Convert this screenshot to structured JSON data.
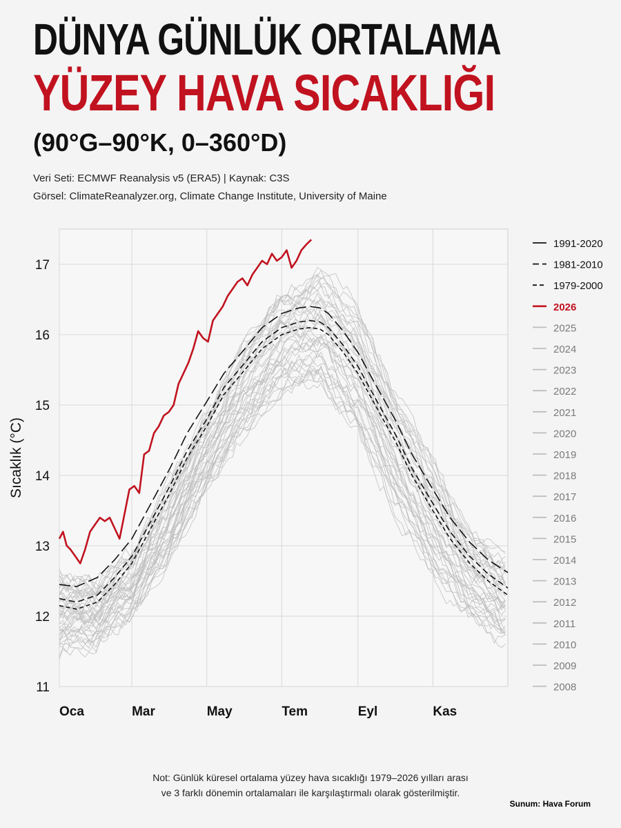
{
  "header": {
    "title_line1": "DÜNYA GÜNLÜK ORTALAMA",
    "title_line2": "YÜZEY HAVA SICAKLIĞI",
    "title_line3": "(90°G–90°K, 0–360°D)",
    "dataset": "Veri Seti: ECMWF Reanalysis v5 (ERA5) | Kaynak: C3S",
    "visual": "Görsel: ClimateReanalyzer.org, Climate Change Institute, University of Maine"
  },
  "footer": {
    "note_line1": "Not: Günlük küresel ortalama yüzey hava sıcaklığı 1979–2026 yılları arası",
    "note_line2": "ve 3 farklı dönemin ortalamaları ile karşılaştırmalı olarak gösterilmiştir.",
    "credit": "Sunum: Hava Forum"
  },
  "colors": {
    "accent_red": "#c1121f",
    "climatology": "#111111",
    "history": "#bdbdbd",
    "grid": "#d8d8d8"
  },
  "chart_data": {
    "type": "line",
    "ylabel": "Sıcaklık (°C)",
    "xlabel": "",
    "ylim": [
      11,
      17.5
    ],
    "xlim": [
      1,
      366
    ],
    "yticks": [
      11,
      12,
      13,
      14,
      15,
      16,
      17
    ],
    "xticks": [
      {
        "day": 1,
        "label": "Oca"
      },
      {
        "day": 60,
        "label": "Mar"
      },
      {
        "day": 121,
        "label": "May"
      },
      {
        "day": 182,
        "label": "Tem"
      },
      {
        "day": 244,
        "label": "Eyl"
      },
      {
        "day": 305,
        "label": "Kas"
      }
    ],
    "grid": true,
    "legend_position": "right",
    "series": [
      {
        "name": "1991-2020",
        "style": "solid",
        "color": "#111111",
        "x": [
          1,
          15,
          32,
          46,
          60,
          74,
          91,
          105,
          121,
          135,
          152,
          166,
          182,
          196,
          205,
          213,
          220,
          232,
          244,
          258,
          274,
          288,
          305,
          319,
          335,
          350,
          366
        ],
        "y": [
          12.45,
          12.42,
          12.55,
          12.8,
          13.1,
          13.55,
          14.1,
          14.6,
          15.05,
          15.45,
          15.8,
          16.1,
          16.3,
          16.38,
          16.4,
          16.38,
          16.3,
          16.05,
          15.75,
          15.3,
          14.8,
          14.3,
          13.8,
          13.4,
          13.05,
          12.8,
          12.62
        ]
      },
      {
        "name": "1981-2010",
        "style": "dashed",
        "color": "#111111",
        "x": [
          1,
          15,
          32,
          46,
          60,
          74,
          91,
          105,
          121,
          135,
          152,
          166,
          182,
          196,
          205,
          213,
          220,
          232,
          244,
          258,
          274,
          288,
          305,
          319,
          335,
          350,
          366
        ],
        "y": [
          12.25,
          12.2,
          12.3,
          12.55,
          12.85,
          13.3,
          13.85,
          14.35,
          14.8,
          15.25,
          15.6,
          15.9,
          16.1,
          16.18,
          16.2,
          16.18,
          16.1,
          15.85,
          15.55,
          15.1,
          14.6,
          14.1,
          13.6,
          13.2,
          12.85,
          12.6,
          12.4
        ]
      },
      {
        "name": "1979-2000",
        "style": "dashed",
        "color": "#111111",
        "x": [
          1,
          15,
          32,
          46,
          60,
          74,
          91,
          105,
          121,
          135,
          152,
          166,
          182,
          196,
          205,
          213,
          220,
          232,
          244,
          258,
          274,
          288,
          305,
          319,
          335,
          350,
          366
        ],
        "y": [
          12.15,
          12.1,
          12.2,
          12.45,
          12.75,
          13.2,
          13.75,
          14.25,
          14.7,
          15.15,
          15.5,
          15.8,
          16.0,
          16.08,
          16.1,
          16.08,
          16.0,
          15.75,
          15.45,
          15.0,
          14.5,
          14.0,
          13.5,
          13.1,
          12.75,
          12.5,
          12.3
        ]
      },
      {
        "name": "2026",
        "style": "solid",
        "color": "#c1121f",
        "x": [
          1,
          4,
          7,
          10,
          14,
          18,
          22,
          26,
          30,
          34,
          38,
          42,
          46,
          50,
          54,
          58,
          62,
          66,
          70,
          74,
          78,
          82,
          86,
          90,
          94,
          98,
          102,
          106,
          110,
          114,
          118,
          122,
          126,
          130,
          134,
          138,
          142,
          146,
          150,
          154,
          158,
          162,
          166,
          170,
          174,
          178,
          182,
          186,
          190,
          194,
          198,
          202,
          206
        ],
        "y": [
          13.1,
          13.2,
          13.0,
          12.95,
          12.85,
          12.75,
          12.95,
          13.2,
          13.3,
          13.4,
          13.35,
          13.4,
          13.25,
          13.1,
          13.45,
          13.8,
          13.85,
          13.75,
          14.3,
          14.35,
          14.6,
          14.7,
          14.85,
          14.9,
          15.0,
          15.3,
          15.45,
          15.6,
          15.8,
          16.05,
          15.95,
          15.9,
          16.2,
          16.3,
          16.4,
          16.55,
          16.65,
          16.75,
          16.8,
          16.7,
          16.85,
          16.95,
          17.05,
          17.0,
          17.15,
          17.05,
          17.1,
          17.2,
          16.95,
          17.05,
          17.2,
          17.28,
          17.35
        ]
      }
    ],
    "history_years": [
      "2025",
      "2024",
      "2023",
      "2022",
      "2021",
      "2020",
      "2019",
      "2018",
      "2017",
      "2016",
      "2015",
      "2014",
      "2013",
      "2012",
      "2011",
      "2010",
      "2009",
      "2008"
    ],
    "history_band": {
      "x": [
        1,
        32,
        60,
        91,
        121,
        152,
        182,
        213,
        244,
        274,
        305,
        335,
        366
      ],
      "low": [
        11.5,
        11.6,
        12.0,
        12.8,
        13.8,
        14.6,
        15.2,
        15.3,
        14.6,
        13.5,
        12.6,
        12.0,
        11.6
      ],
      "high": [
        12.6,
        12.5,
        12.9,
        13.9,
        14.9,
        15.9,
        16.6,
        16.9,
        16.4,
        15.2,
        14.2,
        13.2,
        12.8
      ]
    }
  }
}
